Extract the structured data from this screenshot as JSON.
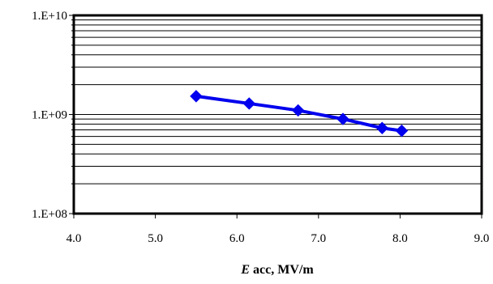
{
  "chart_data": {
    "type": "line",
    "title": "",
    "xlabel_italic": "E",
    "xlabel_rest": " acc, MV/m",
    "ylabel": "",
    "xlim": [
      4.0,
      9.0
    ],
    "ylim": [
      100000000,
      10000000000
    ],
    "yscale": "log",
    "x_ticks": [
      "4.0",
      "5.0",
      "6.0",
      "7.0",
      "8.0",
      "9.0"
    ],
    "y_ticks": [
      "1.E+08",
      "1.E+09",
      "1.E+10"
    ],
    "grid": "horizontal minor and major gridlines",
    "legend": "none",
    "series": [
      {
        "color": "#0000ee",
        "marker": "diamond",
        "points": [
          {
            "x": 5.5,
            "y": 1530000000
          },
          {
            "x": 6.15,
            "y": 1290000000
          },
          {
            "x": 6.75,
            "y": 1100000000
          },
          {
            "x": 7.3,
            "y": 900000000
          },
          {
            "x": 7.78,
            "y": 730000000
          },
          {
            "x": 8.02,
            "y": 685000000
          }
        ]
      }
    ]
  }
}
